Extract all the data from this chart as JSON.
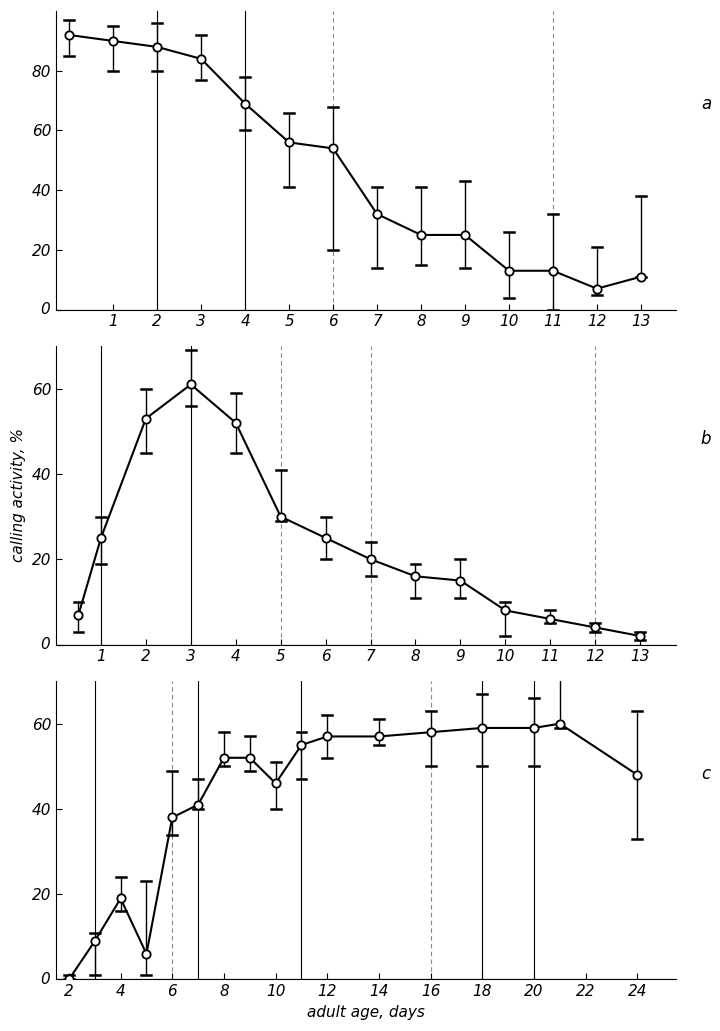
{
  "panel_a": {
    "x": [
      0,
      1,
      2,
      3,
      4,
      5,
      6,
      7,
      8,
      9,
      10,
      11,
      12,
      13
    ],
    "y": [
      92,
      90,
      88,
      84,
      69,
      56,
      54,
      32,
      25,
      25,
      13,
      13,
      7,
      11
    ],
    "yerr_upper": [
      5,
      5,
      8,
      8,
      9,
      10,
      14,
      9,
      16,
      18,
      13,
      19,
      14,
      27
    ],
    "yerr_lower": [
      7,
      10,
      8,
      7,
      9,
      15,
      34,
      18,
      10,
      11,
      9,
      13,
      2,
      0
    ],
    "vlines_solid": [
      2,
      4
    ],
    "vlines_dashed": [
      6,
      11
    ],
    "xlim": [
      -0.3,
      13.8
    ],
    "ylim": [
      0,
      100
    ],
    "yticks": [
      0,
      20,
      40,
      60,
      80
    ],
    "xticks": [
      1,
      2,
      3,
      4,
      5,
      6,
      7,
      8,
      9,
      10,
      11,
      12,
      13
    ],
    "label": "a"
  },
  "panel_b": {
    "x": [
      0.5,
      1,
      2,
      3,
      4,
      5,
      6,
      7,
      8,
      9,
      10,
      11,
      12,
      13
    ],
    "y": [
      7,
      25,
      53,
      61,
      52,
      30,
      25,
      20,
      16,
      15,
      8,
      6,
      4,
      2
    ],
    "yerr_upper": [
      3,
      5,
      7,
      8,
      7,
      11,
      5,
      4,
      3,
      5,
      2,
      2,
      1,
      1
    ],
    "yerr_lower": [
      4,
      6,
      8,
      5,
      7,
      1,
      5,
      4,
      5,
      4,
      6,
      1,
      1,
      1
    ],
    "vlines_solid": [
      1,
      3
    ],
    "vlines_dashed": [
      5,
      7,
      12
    ],
    "xlim": [
      0.0,
      13.8
    ],
    "ylim": [
      0,
      70
    ],
    "yticks": [
      0,
      20,
      40,
      60
    ],
    "xticks": [
      1,
      2,
      3,
      4,
      5,
      6,
      7,
      8,
      9,
      10,
      11,
      12,
      13
    ],
    "label": "b"
  },
  "panel_c": {
    "x": [
      2,
      3,
      4,
      5,
      6,
      7,
      8,
      9,
      10,
      11,
      12,
      14,
      16,
      18,
      20,
      21,
      24
    ],
    "y": [
      0,
      9,
      19,
      6,
      38,
      41,
      52,
      52,
      46,
      55,
      57,
      57,
      58,
      59,
      59,
      60,
      48
    ],
    "yerr_upper": [
      1,
      2,
      5,
      17,
      11,
      6,
      6,
      5,
      5,
      3,
      5,
      4,
      5,
      8,
      7,
      11,
      15
    ],
    "yerr_lower": [
      0,
      8,
      3,
      5,
      4,
      1,
      2,
      3,
      6,
      8,
      5,
      2,
      8,
      9,
      9,
      1,
      15
    ],
    "vlines_solid": [
      3,
      7,
      11,
      18,
      20
    ],
    "vlines_dashed": [
      6,
      16
    ],
    "xlim": [
      1.5,
      25.5
    ],
    "ylim": [
      0,
      70
    ],
    "yticks": [
      0,
      20,
      40,
      60
    ],
    "xticks": [
      2,
      4,
      6,
      8,
      10,
      12,
      14,
      16,
      18,
      20,
      22,
      24
    ],
    "xlabel": "adult age, days",
    "label": "c"
  },
  "ylabel": "calling activity, %"
}
